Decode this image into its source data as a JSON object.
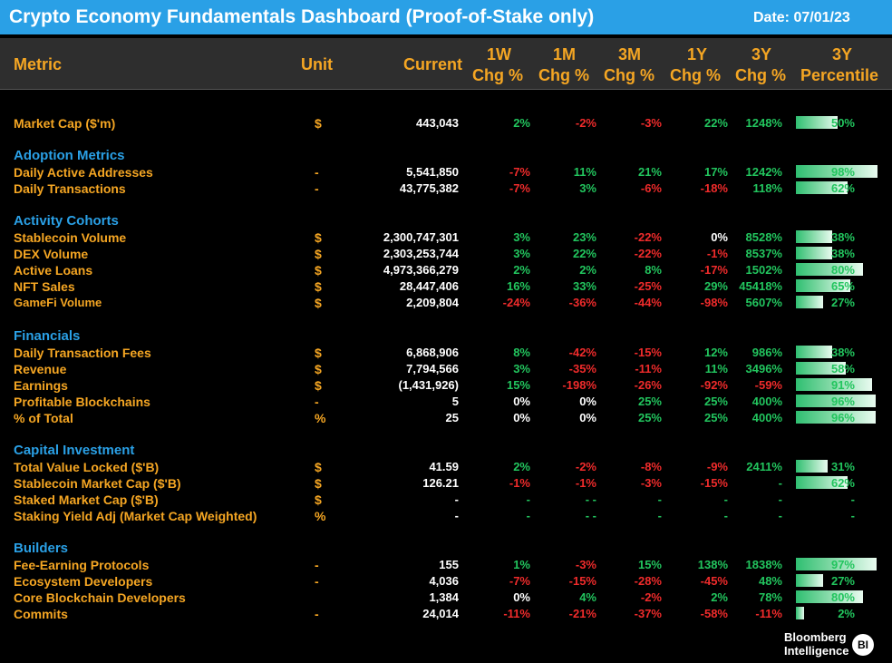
{
  "title": "Crypto Economy Fundamentals Dashboard (Proof-of-Stake only)",
  "date": "Date:  07/01/23",
  "headers": {
    "metric": "Metric",
    "unit": "Unit",
    "current": "Current",
    "w1a": "1W",
    "w1b": "Chg %",
    "m1a": "1M",
    "m1b": "Chg %",
    "m3a": "3M",
    "m3b": "Chg %",
    "y1a": "1Y",
    "y1b": "Chg %",
    "y3a": "3Y",
    "y3b": "Chg %",
    "pa": "3Y",
    "pb": "Percentile"
  },
  "rows": [
    {
      "type": "metric",
      "label": "Market Cap ($'m)",
      "unit": "$",
      "current": "443,043",
      "w1": "2%",
      "m1": "-2%",
      "m3": "-3%",
      "y1": "22%",
      "y3": "1248%",
      "pct": "50%",
      "fill": 0.5
    },
    {
      "type": "section",
      "label": "Adoption Metrics"
    },
    {
      "type": "metric",
      "label": "Daily Active Addresses",
      "unit": "-",
      "current": "5,541,850",
      "w1": "-7%",
      "m1": "11%",
      "m3": "21%",
      "y1": "17%",
      "y3": "1242%",
      "pct": "98%",
      "fill": 0.98
    },
    {
      "type": "metric",
      "label": "Daily Transactions",
      "unit": "-",
      "current": "43,775,382",
      "w1": "-7%",
      "m1": "3%",
      "m3": "-6%",
      "y1": "-18%",
      "y3": "118%",
      "pct": "62%",
      "fill": 0.62
    },
    {
      "type": "section",
      "label": "Activity Cohorts"
    },
    {
      "type": "metric",
      "label": "Stablecoin Volume",
      "unit": "$",
      "current": "2,300,747,301",
      "w1": "3%",
      "m1": "23%",
      "m3": "-22%",
      "y1": "0%",
      "y3": "8528%",
      "pct": "38%",
      "fill": 0.44
    },
    {
      "type": "metric",
      "label": "DEX Volume",
      "unit": "$",
      "current": "2,303,253,744",
      "w1": "3%",
      "m1": "22%",
      "m3": "-22%",
      "y1": "-1%",
      "y3": "8537%",
      "pct": "38%",
      "fill": 0.44
    },
    {
      "type": "metric",
      "label": "Active Loans",
      "unit": "$",
      "current": "4,973,366,279",
      "w1": "2%",
      "m1": "2%",
      "m3": "8%",
      "y1": "-17%",
      "y3": "1502%",
      "pct": "80%",
      "fill": 0.8
    },
    {
      "type": "metric",
      "label": "NFT Sales",
      "unit": "$",
      "current": "28,447,406",
      "w1": "16%",
      "m1": "33%",
      "m3": "-25%",
      "y1": "29%",
      "y3": "45418%",
      "pct": "65%",
      "fill": 0.65
    },
    {
      "type": "metric",
      "small": true,
      "label": "GameFi Volume",
      "unit": "$",
      "current": "2,209,804",
      "w1": "-24%",
      "m1": "-36%",
      "m3": "-44%",
      "y1": "-98%",
      "y3": "5607%",
      "pct": "27%",
      "fill": 0.33
    },
    {
      "type": "section",
      "label": "Financials"
    },
    {
      "type": "metric",
      "label": "Daily Transaction Fees",
      "unit": "$",
      "current": "6,868,906",
      "w1": "8%",
      "m1": "-42%",
      "m3": "-15%",
      "y1": "12%",
      "y3": "986%",
      "pct": "38%",
      "fill": 0.44
    },
    {
      "type": "metric",
      "label": "Revenue",
      "unit": "$",
      "current": "7,794,566",
      "w1": "3%",
      "m1": "-35%",
      "m3": "-11%",
      "y1": "11%",
      "y3": "3496%",
      "pct": "58%",
      "fill": 0.6
    },
    {
      "type": "metric",
      "label": "Earnings",
      "unit": "$",
      "current": "(1,431,926)",
      "w1": "15%",
      "m1": "-198%",
      "m3": "-26%",
      "y1": "-92%",
      "y3": "-59%",
      "pct": "91%",
      "fill": 0.91
    },
    {
      "type": "metric",
      "label": "Profitable Blockchains",
      "unit": "-",
      "current": "5",
      "w1": "0%",
      "m1": "0%",
      "m3": "25%",
      "y1": "25%",
      "y3": "400%",
      "pct": "96%",
      "fill": 0.96
    },
    {
      "type": "metric",
      "label": " % of Total",
      "unit": "%",
      "current": "25",
      "w1": "0%",
      "m1": "0%",
      "m3": "25%",
      "y1": "25%",
      "y3": "400%",
      "pct": "96%",
      "fill": 0.96
    },
    {
      "type": "section",
      "label": "Capital Investment"
    },
    {
      "type": "metric",
      "label": "Total Value Locked ($'B)",
      "unit": "$",
      "current": "41.59",
      "w1": "2%",
      "m1": "-2%",
      "m3": "-8%",
      "y1": "-9%",
      "y3": "2411%",
      "pct": "31%",
      "fill": 0.38
    },
    {
      "type": "metric",
      "label": "Stablecoin Market Cap ($'B)",
      "unit": "$",
      "current": "126.21",
      "w1": "-1%",
      "m1": "-1%",
      "m3": "-3%",
      "y1": "-15%",
      "y3": "-",
      "pct": "62%",
      "fill": 0.62
    },
    {
      "type": "metric",
      "label": "Staked Market Cap ($'B)",
      "unit": "$",
      "current": "-",
      "w1": "-",
      "m1": "- -",
      "m3": "-",
      "y1": "-",
      "y3": "-",
      "pct": "-",
      "fill": 0
    },
    {
      "type": "metric",
      "label": "Staking Yield Adj (Market Cap Weighted)",
      "unit": "%",
      "current": "-",
      "w1": "-",
      "m1": "- -",
      "m3": "-",
      "y1": "-",
      "y3": "-",
      "pct": "-",
      "fill": 0
    },
    {
      "type": "section",
      "label": "Builders"
    },
    {
      "type": "metric",
      "label": "Fee-Earning Protocols",
      "unit": "-",
      "current": "155",
      "w1": "1%",
      "m1": "-3%",
      "m3": "15%",
      "y1": "138%",
      "y3": "1838%",
      "pct": "97%",
      "fill": 0.97
    },
    {
      "type": "metric",
      "label": "Ecosystem Developers",
      "unit": "-",
      "current": "4,036",
      "w1": "-7%",
      "m1": "-15%",
      "m3": "-28%",
      "y1": "-45%",
      "y3": "48%",
      "pct": "27%",
      "fill": 0.33
    },
    {
      "type": "metric",
      "label": "Core Blockchain Developers",
      "unit": "",
      "current": "1,384",
      "w1": "0%",
      "m1": "4%",
      "m3": "-2%",
      "y1": "2%",
      "y3": "78%",
      "pct": "80%",
      "fill": 0.8
    },
    {
      "type": "metric",
      "label": "Commits",
      "unit": "-",
      "current": "24,014",
      "w1": "-11%",
      "m1": "-21%",
      "m3": "-37%",
      "y1": "-58%",
      "y3": "-11%",
      "pct": "2%",
      "fill": 0.1
    }
  ],
  "logo": {
    "line1": "Bloomberg",
    "line2": "Intelligence",
    "badge": "BI"
  }
}
